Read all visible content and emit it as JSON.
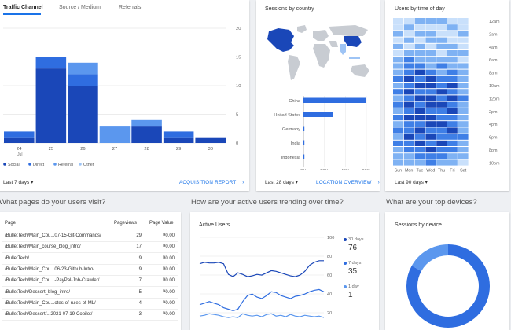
{
  "colors": {
    "social": "#1a47b8",
    "direct": "#2f6de0",
    "referral": "#5b97ee",
    "other": "#9ec4f5",
    "accent": "#1a73e8"
  },
  "traffic": {
    "tabs": [
      "Traffic Channel",
      "Source / Medium",
      "Referrals"
    ],
    "footer_range": "Last 7 days",
    "footer_link": "ACQUISITION REPORT",
    "chart_data": {
      "type": "bar",
      "stacked": true,
      "categories": [
        "24",
        "25",
        "26",
        "27",
        "28",
        "29",
        "30"
      ],
      "month_label": "Jul",
      "ylim": [
        0,
        20
      ],
      "yticks": [
        "20",
        "15",
        "10",
        "5",
        "0"
      ],
      "legend": [
        "Social",
        "Direct",
        "Referral",
        "Other"
      ],
      "series": [
        {
          "name": "Social",
          "values": [
            1,
            13,
            10,
            0,
            3,
            1,
            1
          ]
        },
        {
          "name": "Direct",
          "values": [
            1,
            2,
            2,
            0,
            0,
            1,
            0
          ]
        },
        {
          "name": "Referral",
          "values": [
            0,
            0,
            2,
            3,
            1,
            0,
            0
          ]
        },
        {
          "name": "Other",
          "values": [
            0,
            0,
            0,
            0,
            0,
            0,
            0
          ]
        }
      ]
    }
  },
  "country": {
    "title": "Sessions by country",
    "footer_range": "Last 28 days",
    "footer_link": "LOCATION OVERVIEW",
    "chart_data": {
      "type": "bar",
      "orientation": "horizontal",
      "categories": [
        "China",
        "United States",
        "Germany",
        "India",
        "Indonesia"
      ],
      "values": [
        0.7,
        0.33,
        0.01,
        0.01,
        0.01
      ],
      "xticks": [
        "0%",
        "20%",
        "40%",
        "60%"
      ]
    }
  },
  "timeofday": {
    "title": "Users by time of day",
    "footer_range": "Last 90 days",
    "hours": [
      "12am",
      "2am",
      "4am",
      "6am",
      "8am",
      "10am",
      "12pm",
      "2pm",
      "4pm",
      "6pm",
      "8pm",
      "10pm"
    ],
    "days": [
      "Sun",
      "Mon",
      "Tue",
      "Wed",
      "Thu",
      "Fri",
      "Sat"
    ],
    "scale": [
      "1",
      "4",
      "6",
      "9",
      "11"
    ],
    "grid": [
      [
        1,
        1,
        2,
        2,
        2,
        1,
        1
      ],
      [
        1,
        2,
        1,
        1,
        1,
        2,
        1
      ],
      [
        2,
        1,
        2,
        2,
        1,
        1,
        2
      ],
      [
        1,
        2,
        1,
        2,
        2,
        1,
        1
      ],
      [
        2,
        1,
        2,
        1,
        2,
        2,
        1
      ],
      [
        1,
        2,
        2,
        2,
        1,
        2,
        2
      ],
      [
        2,
        3,
        2,
        2,
        2,
        2,
        1
      ],
      [
        2,
        3,
        3,
        2,
        3,
        2,
        2
      ],
      [
        2,
        3,
        4,
        3,
        2,
        3,
        2
      ],
      [
        3,
        4,
        3,
        4,
        3,
        3,
        2
      ],
      [
        2,
        3,
        4,
        4,
        3,
        4,
        2
      ],
      [
        3,
        4,
        3,
        3,
        4,
        3,
        2
      ],
      [
        2,
        3,
        4,
        4,
        3,
        4,
        3
      ],
      [
        3,
        4,
        3,
        4,
        4,
        3,
        2
      ],
      [
        2,
        3,
        4,
        3,
        3,
        4,
        2
      ],
      [
        3,
        4,
        4,
        4,
        3,
        3,
        2
      ],
      [
        2,
        3,
        3,
        4,
        4,
        3,
        2
      ],
      [
        3,
        3,
        4,
        3,
        3,
        4,
        2
      ],
      [
        2,
        4,
        3,
        4,
        3,
        3,
        3
      ],
      [
        3,
        3,
        4,
        3,
        4,
        3,
        2
      ],
      [
        2,
        3,
        3,
        4,
        3,
        3,
        2
      ],
      [
        2,
        2,
        3,
        3,
        3,
        2,
        2
      ],
      [
        2,
        2,
        2,
        3,
        2,
        2,
        1
      ]
    ]
  },
  "pages": {
    "question": "What pages do your users visit?",
    "headers": [
      "Page",
      "Pageviews",
      "Page Value"
    ],
    "rows": [
      [
        "/BulletTech/Main_Cou...07-15-Git-Commands/",
        "29",
        "¥0.00"
      ],
      [
        "/BulletTech/Main_course_blog_intro/",
        "17",
        "¥0.00"
      ],
      [
        "/BulletTech/",
        "9",
        "¥0.00"
      ],
      [
        "/BulletTech/Main_Cou...06-23-Github-Intro/",
        "9",
        "¥0.00"
      ],
      [
        "/BulletTech/Main_Cou...-PayPal-Job-Crawler/",
        "7",
        "¥0.00"
      ],
      [
        "/BulletTech/Dessert_blog_intro/",
        "5",
        "¥0.00"
      ],
      [
        "/BulletTech/Main_Cou...otes-of-rules-of-ML/",
        "4",
        "¥0.00"
      ],
      [
        "/BulletTech/Dessert/...2021-07-19-Copilot/",
        "3",
        "¥0.00"
      ]
    ]
  },
  "active": {
    "question": "How are your active users trending over time?",
    "title": "Active Users",
    "yticks": [
      "100",
      "80",
      "60",
      "40",
      "20"
    ],
    "legend": [
      {
        "label": "30 days",
        "value": "76"
      },
      {
        "label": "7 days",
        "value": "35"
      },
      {
        "label": "1 day",
        "value": "1"
      }
    ],
    "chart_data": {
      "type": "line",
      "ylim": [
        0,
        100
      ],
      "series": [
        {
          "name": "30 days",
          "values": [
            72,
            74,
            73,
            73,
            74,
            72,
            58,
            55,
            60,
            58,
            55,
            56,
            58,
            57,
            60,
            63,
            62,
            60,
            58,
            56,
            55,
            57,
            62,
            70,
            74,
            76,
            76
          ]
        },
        {
          "name": "7 days",
          "values": [
            18,
            20,
            22,
            20,
            18,
            14,
            12,
            10,
            12,
            22,
            30,
            32,
            28,
            26,
            30,
            35,
            34,
            30,
            28,
            26,
            29,
            30,
            32,
            35,
            37,
            38,
            35
          ]
        },
        {
          "name": "1 day",
          "values": [
            3,
            4,
            6,
            5,
            4,
            2,
            1,
            2,
            1,
            6,
            4,
            3,
            4,
            2,
            5,
            6,
            3,
            4,
            2,
            5,
            3,
            2,
            4,
            3,
            2,
            3,
            1
          ]
        }
      ]
    }
  },
  "devices": {
    "question": "What are your top devices?",
    "title": "Sessions by device",
    "chart_data": {
      "type": "pie",
      "categories": [
        "desktop",
        "mobile"
      ],
      "values": [
        0.83,
        0.17
      ]
    }
  }
}
